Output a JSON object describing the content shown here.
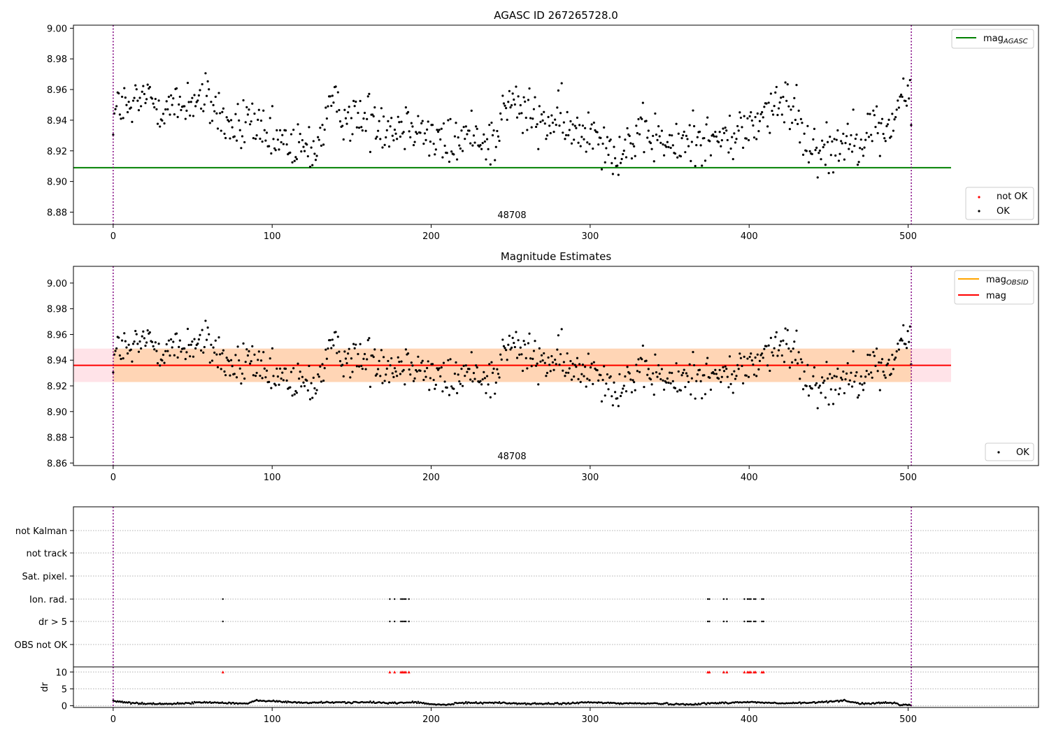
{
  "chart_data": [
    {
      "type": "scatter",
      "title": "AGASC ID 267265728.0",
      "xlim": [
        -25,
        582
      ],
      "ylim": [
        8.872,
        9.002
      ],
      "xticks": [
        0,
        100,
        200,
        300,
        400,
        500
      ],
      "yticks": [
        8.88,
        8.9,
        8.92,
        8.94,
        8.96,
        8.98,
        9.0
      ],
      "ytick_labels": [
        "8.88",
        "8.90",
        "8.92",
        "8.94",
        "8.96",
        "8.98",
        "9.00"
      ],
      "vlines": [
        0,
        502
      ],
      "obs_label": "48708",
      "mag_agasc": 8.909,
      "hline_xrange": [
        -25,
        527
      ],
      "legend_lines": [
        {
          "label": "mag",
          "sub": "AGASC",
          "color": "#008000"
        }
      ],
      "legend_points": [
        {
          "label": "not OK",
          "color": "#ff0000"
        },
        {
          "label": "OK",
          "color": "#000000"
        }
      ],
      "series": [
        {
          "name": "OK",
          "color": "#000000",
          "anchors": [
            [
              0,
              8.942
            ],
            [
              5,
              8.952
            ],
            [
              10,
              8.944
            ],
            [
              20,
              8.956
            ],
            [
              30,
              8.95
            ],
            [
              40,
              8.948
            ],
            [
              50,
              8.954
            ],
            [
              60,
              8.952
            ],
            [
              65,
              8.947
            ],
            [
              72,
              8.936
            ],
            [
              80,
              8.932
            ],
            [
              85,
              8.944
            ],
            [
              90,
              8.935
            ],
            [
              95,
              8.925
            ],
            [
              100,
              8.926
            ],
            [
              110,
              8.924
            ],
            [
              120,
              8.92
            ],
            [
              130,
              8.925
            ],
            [
              135,
              8.948
            ],
            [
              145,
              8.945
            ],
            [
              155,
              8.94
            ],
            [
              165,
              8.942
            ],
            [
              175,
              8.935
            ],
            [
              190,
              8.94
            ],
            [
              200,
              8.928
            ],
            [
              210,
              8.924
            ],
            [
              220,
              8.928
            ],
            [
              230,
              8.932
            ],
            [
              240,
              8.924
            ],
            [
              245,
              8.946
            ],
            [
              252,
              8.952
            ],
            [
              258,
              8.945
            ],
            [
              270,
              8.938
            ],
            [
              280,
              8.94
            ],
            [
              290,
              8.93
            ],
            [
              300,
              8.935
            ],
            [
              305,
              8.935
            ],
            [
              310,
              8.925
            ],
            [
              315,
              8.918
            ],
            [
              325,
              8.926
            ],
            [
              340,
              8.93
            ],
            [
              355,
              8.92
            ],
            [
              360,
              8.928
            ],
            [
              370,
              8.93
            ],
            [
              380,
              8.926
            ],
            [
              390,
              8.93
            ],
            [
              400,
              8.935
            ],
            [
              410,
              8.945
            ],
            [
              420,
              8.948
            ],
            [
              430,
              8.95
            ],
            [
              434,
              8.928
            ],
            [
              440,
              8.925
            ],
            [
              450,
              8.92
            ],
            [
              460,
              8.928
            ],
            [
              470,
              8.93
            ],
            [
              480,
              8.935
            ],
            [
              488,
              8.932
            ],
            [
              495,
              8.955
            ],
            [
              502,
              8.952
            ]
          ]
        }
      ]
    },
    {
      "type": "scatter",
      "title": "Magnitude Estimates",
      "xlim": [
        -25,
        582
      ],
      "ylim": [
        8.858,
        9.013
      ],
      "xticks": [
        0,
        100,
        200,
        300,
        400,
        500
      ],
      "yticks": [
        8.86,
        8.88,
        8.9,
        8.92,
        8.94,
        8.96,
        8.98,
        9.0
      ],
      "ytick_labels": [
        "8.86",
        "8.88",
        "8.90",
        "8.92",
        "8.94",
        "8.96",
        "8.98",
        "9.00"
      ],
      "vlines": [
        0,
        502
      ],
      "obs_label": "48708",
      "mag": 8.936,
      "mag_band": [
        8.923,
        8.949
      ],
      "mag_obsid": 8.936,
      "obsid_band": [
        8.923,
        8.949
      ],
      "line_xrange": [
        -25,
        527
      ],
      "legend_lines": [
        {
          "label": "mag",
          "sub": "OBSID",
          "color": "#ffa500"
        },
        {
          "label": "mag",
          "sub": "",
          "color": "#ff0000"
        }
      ],
      "legend_points": [
        {
          "label": "OK",
          "color": "#000000"
        }
      ],
      "series": [
        {
          "name": "OK",
          "color": "#000000",
          "same_as_panel": 0
        }
      ]
    },
    {
      "type": "scatter",
      "title": "",
      "xlim": [
        -25,
        582
      ],
      "xticks": [
        0,
        100,
        200,
        300,
        400,
        500
      ],
      "vlines": [
        0,
        502
      ],
      "flag_rows": [
        "not Kalman",
        "not track",
        "Sat. pixel.",
        "Ion. rad.",
        "dr > 5",
        "OBS not OK"
      ],
      "flagged_times": {
        "Ion. rad.": [
          69,
          174,
          177,
          181,
          182,
          183,
          184,
          186,
          374,
          375,
          384,
          386,
          397,
          399,
          400,
          401,
          403,
          404,
          408,
          409
        ],
        "dr > 5": [
          69,
          174,
          177,
          181,
          182,
          183,
          184,
          186,
          374,
          375,
          384,
          386,
          397,
          399,
          400,
          401,
          403,
          404,
          408,
          409
        ]
      },
      "dr_ylabel": "dr",
      "dr_ylim": [
        -0.5,
        11.5
      ],
      "dr_yticks": [
        0,
        5,
        10
      ],
      "dr_ytick_labels": [
        "0",
        "5",
        "10"
      ],
      "dr_clip": 10,
      "dr_clipped_times": [
        69,
        174,
        177,
        181,
        182,
        183,
        184,
        186,
        374,
        375,
        384,
        386,
        397,
        399,
        400,
        401,
        403,
        404,
        408,
        409
      ],
      "dr_series": {
        "color": "#000000",
        "anchors": [
          [
            0,
            1.4
          ],
          [
            10,
            0.9
          ],
          [
            20,
            0.6
          ],
          [
            40,
            0.6
          ],
          [
            55,
            1.0
          ],
          [
            70,
            0.9
          ],
          [
            85,
            0.6
          ],
          [
            90,
            1.6
          ],
          [
            110,
            1.1
          ],
          [
            120,
            0.9
          ],
          [
            140,
            1.0
          ],
          [
            160,
            1.0
          ],
          [
            180,
            0.8
          ],
          [
            190,
            1.1
          ],
          [
            200,
            0.4
          ],
          [
            210,
            0.3
          ],
          [
            220,
            0.9
          ],
          [
            240,
            0.9
          ],
          [
            260,
            0.6
          ],
          [
            280,
            0.6
          ],
          [
            300,
            1.0
          ],
          [
            320,
            0.7
          ],
          [
            340,
            0.7
          ],
          [
            360,
            0.4
          ],
          [
            380,
            0.8
          ],
          [
            400,
            1.1
          ],
          [
            420,
            0.7
          ],
          [
            440,
            0.9
          ],
          [
            460,
            1.6
          ],
          [
            470,
            0.6
          ],
          [
            490,
            0.9
          ],
          [
            495,
            0.3
          ],
          [
            502,
            0.2
          ]
        ]
      }
    }
  ]
}
